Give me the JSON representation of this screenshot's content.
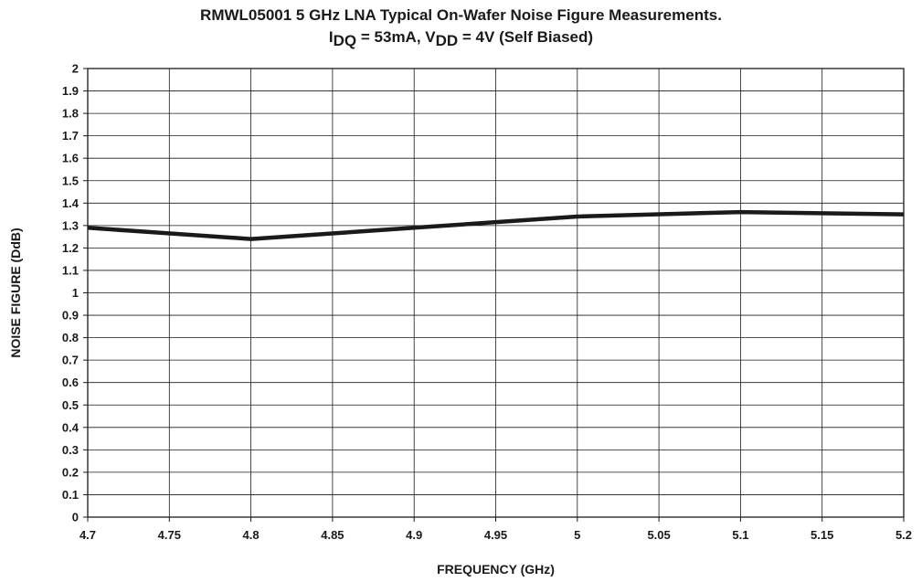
{
  "chart_data": {
    "type": "line",
    "title": "RMWL05001 5 GHz LNA Typical On-Wafer Noise Figure Measurements.",
    "subtitle": {
      "i_sym": "I",
      "i_sub": "DQ",
      "i_val": " = 53mA, ",
      "v_sym": "V",
      "v_sub": "DD",
      "v_val": " = 4V (Self Biased)"
    },
    "xlabel": "FREQUENCY (GHz)",
    "ylabel": "NOISE FIGURE (DdB)",
    "xlim": [
      4.7,
      5.2
    ],
    "ylim": [
      0,
      2
    ],
    "x_ticks": [
      "4.7",
      "4.75",
      "4.8",
      "4.85",
      "4.9",
      "4.95",
      "5",
      "5.05",
      "5.1",
      "5.15",
      "5.2"
    ],
    "y_ticks": [
      "0",
      "0.1",
      "0.2",
      "0.3",
      "0.4",
      "0.5",
      "0.6",
      "0.7",
      "0.8",
      "0.9",
      "1",
      "1.1",
      "1.2",
      "1.3",
      "1.4",
      "1.5",
      "1.6",
      "1.7",
      "1.8",
      "1.9",
      "2"
    ],
    "grid": true,
    "line_color": "#1a1a1a",
    "series": [
      {
        "x": [
          4.7,
          4.8,
          4.9,
          5.0,
          5.1,
          5.2
        ],
        "y": [
          1.29,
          1.24,
          1.29,
          1.34,
          1.36,
          1.35
        ]
      }
    ]
  }
}
